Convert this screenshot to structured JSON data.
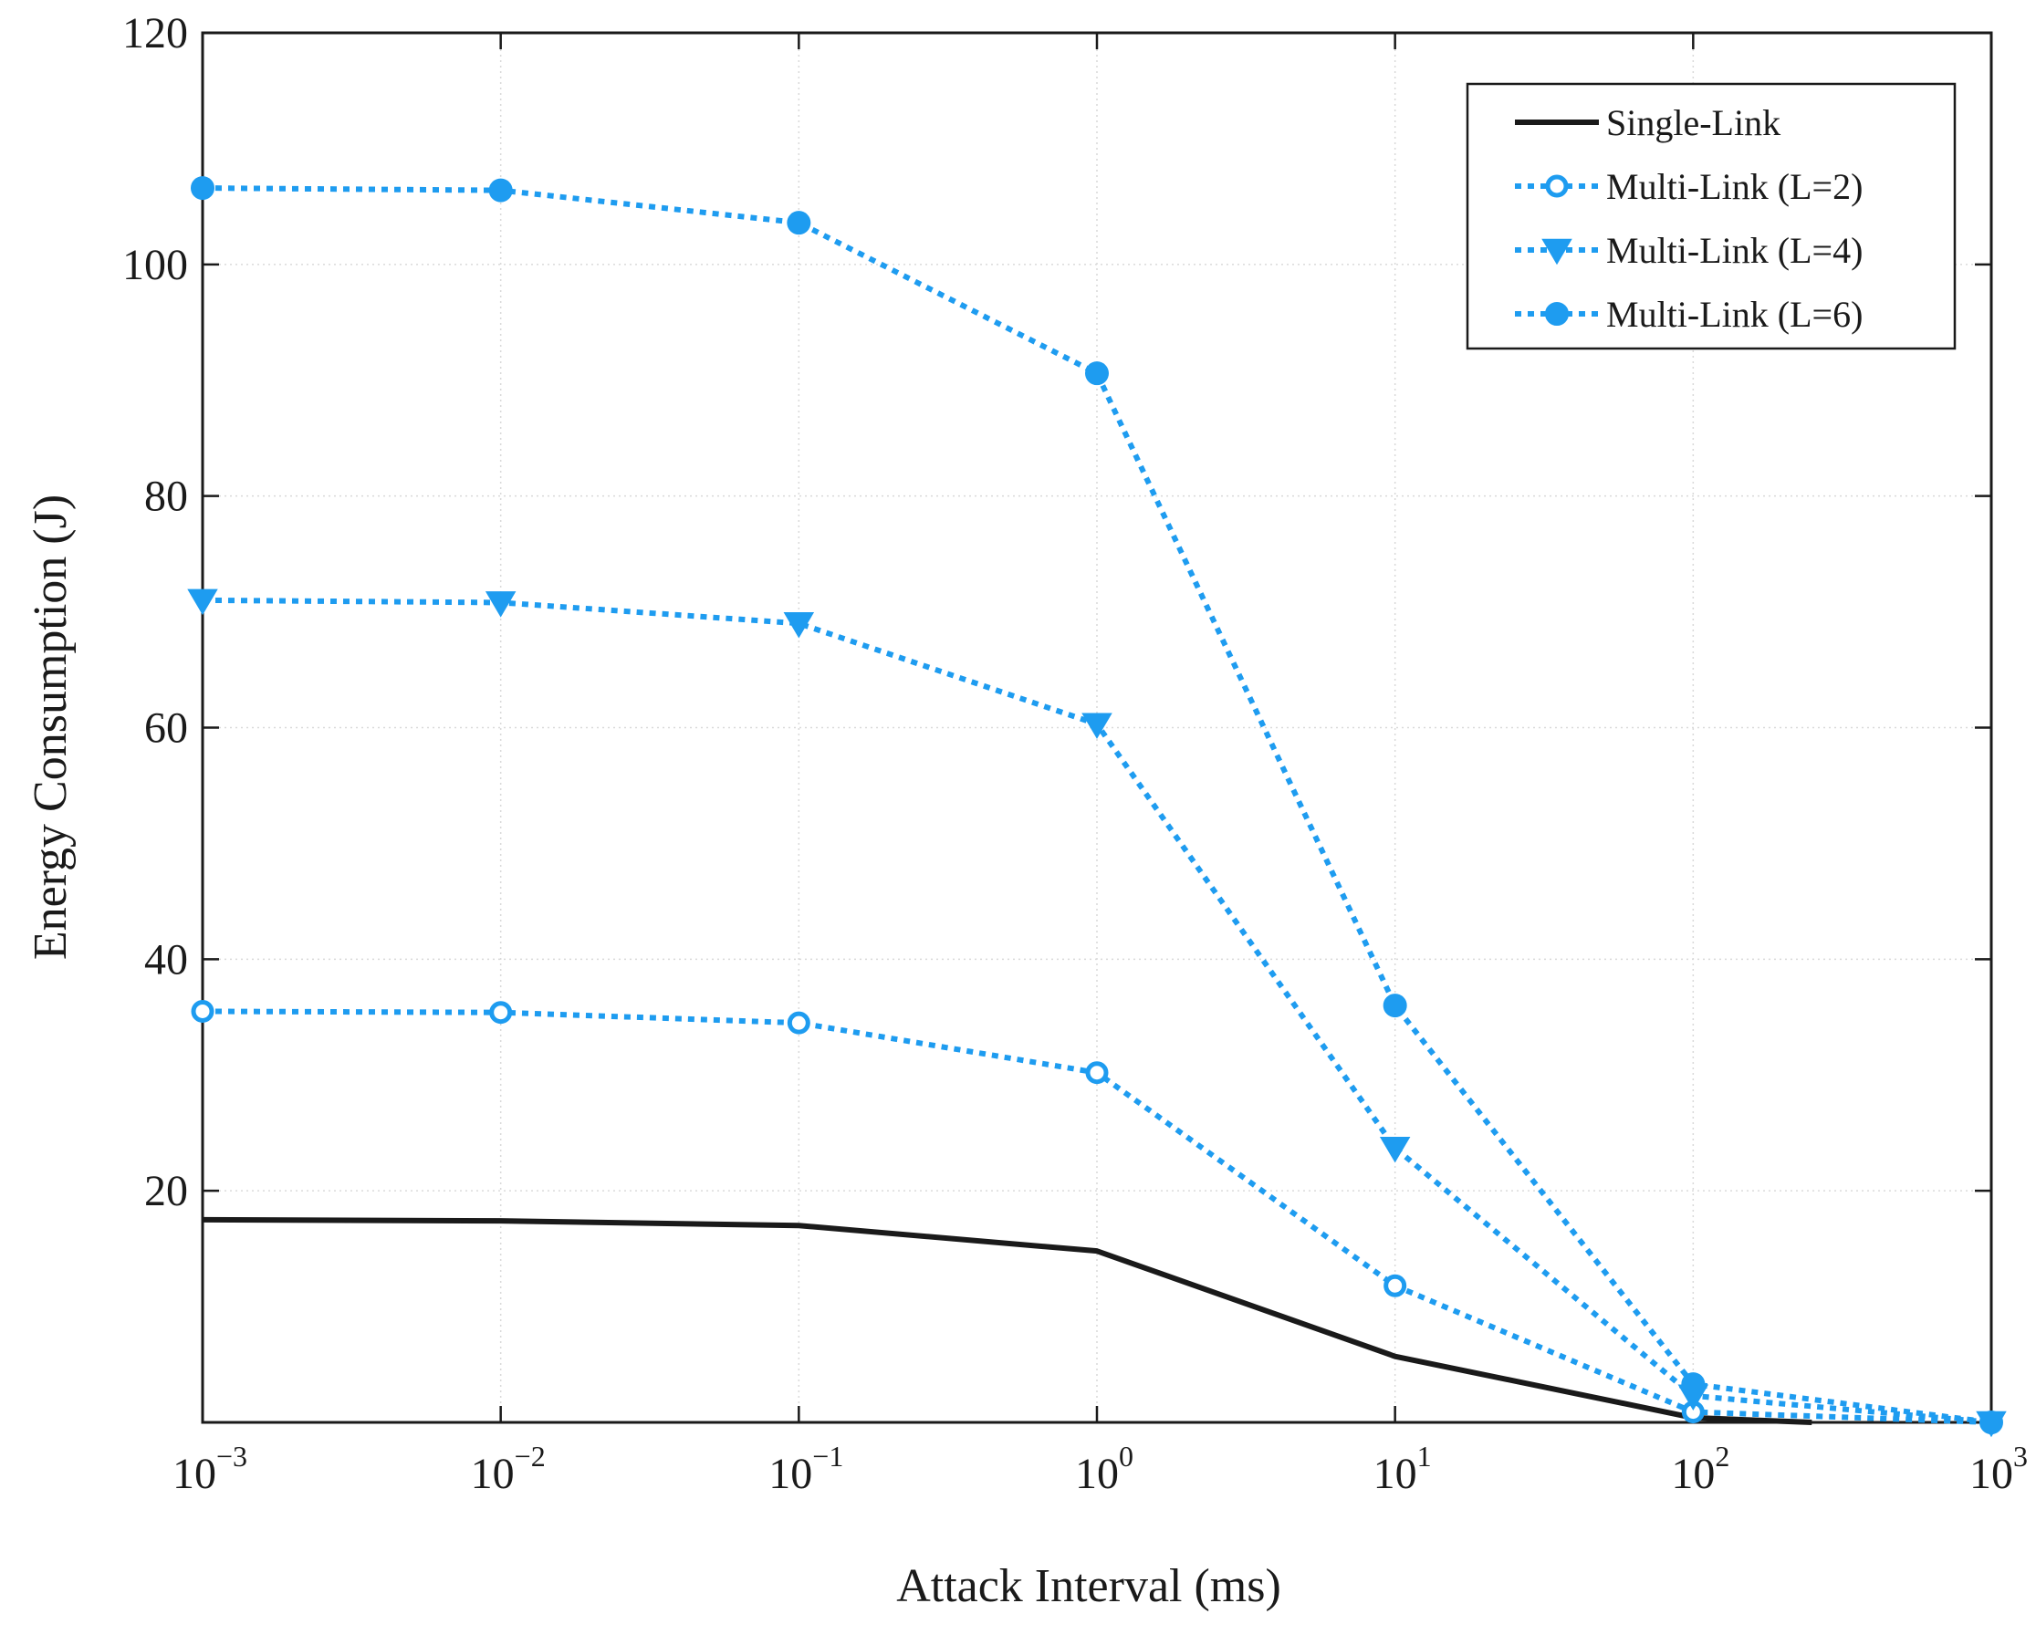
{
  "chart_data": {
    "type": "line",
    "title": "",
    "xlabel": "Attack Interval (ms)",
    "ylabel": "Energy Consumption (J)",
    "xscale": "log",
    "xlim": [
      0.001,
      1000
    ],
    "ylim": [
      0,
      120
    ],
    "grid": true,
    "legend_position": "top-right",
    "x_ticks": [
      {
        "base": "10",
        "exp": "−3"
      },
      {
        "base": "10",
        "exp": "−2"
      },
      {
        "base": "10",
        "exp": "−1"
      },
      {
        "base": "10",
        "exp": "0"
      },
      {
        "base": "10",
        "exp": "1"
      },
      {
        "base": "10",
        "exp": "2"
      },
      {
        "base": "10",
        "exp": "3"
      }
    ],
    "x_tick_values": [
      0.001,
      0.01,
      0.1,
      1,
      10,
      100,
      1000
    ],
    "y_ticks": [
      "20",
      "40",
      "60",
      "80",
      "100",
      "120"
    ],
    "y_tick_values": [
      20,
      40,
      60,
      80,
      100,
      120
    ],
    "series": [
      {
        "name": "Single-Link",
        "color": "#1a1a1a",
        "style": "solid",
        "marker": "none",
        "x": [
          0.001,
          0.01,
          0.1,
          1,
          10,
          100,
          250
        ],
        "y": [
          17.5,
          17.4,
          17.0,
          14.8,
          5.7,
          0.4,
          0.0
        ]
      },
      {
        "name": "Multi-Link (L=2)",
        "color": "#1e9cf0",
        "style": "dotted",
        "marker": "open-circle",
        "x": [
          0.001,
          0.01,
          0.1,
          1,
          10,
          100,
          1000
        ],
        "y": [
          35.5,
          35.4,
          34.5,
          30.2,
          11.8,
          0.9,
          0.0
        ]
      },
      {
        "name": "Multi-Link (L=4)",
        "color": "#1e9cf0",
        "style": "dotted",
        "marker": "triangle-down",
        "x": [
          0.001,
          0.01,
          0.1,
          1,
          10,
          100,
          1000
        ],
        "y": [
          71.0,
          70.8,
          69.0,
          60.3,
          23.7,
          2.3,
          0.0
        ]
      },
      {
        "name": "Multi-Link (L=6)",
        "color": "#1e9cf0",
        "style": "dotted",
        "marker": "filled-circle",
        "x": [
          0.001,
          0.01,
          0.1,
          1,
          10,
          100,
          1000
        ],
        "y": [
          106.6,
          106.4,
          103.6,
          90.6,
          36.0,
          3.3,
          0.0
        ]
      }
    ]
  }
}
